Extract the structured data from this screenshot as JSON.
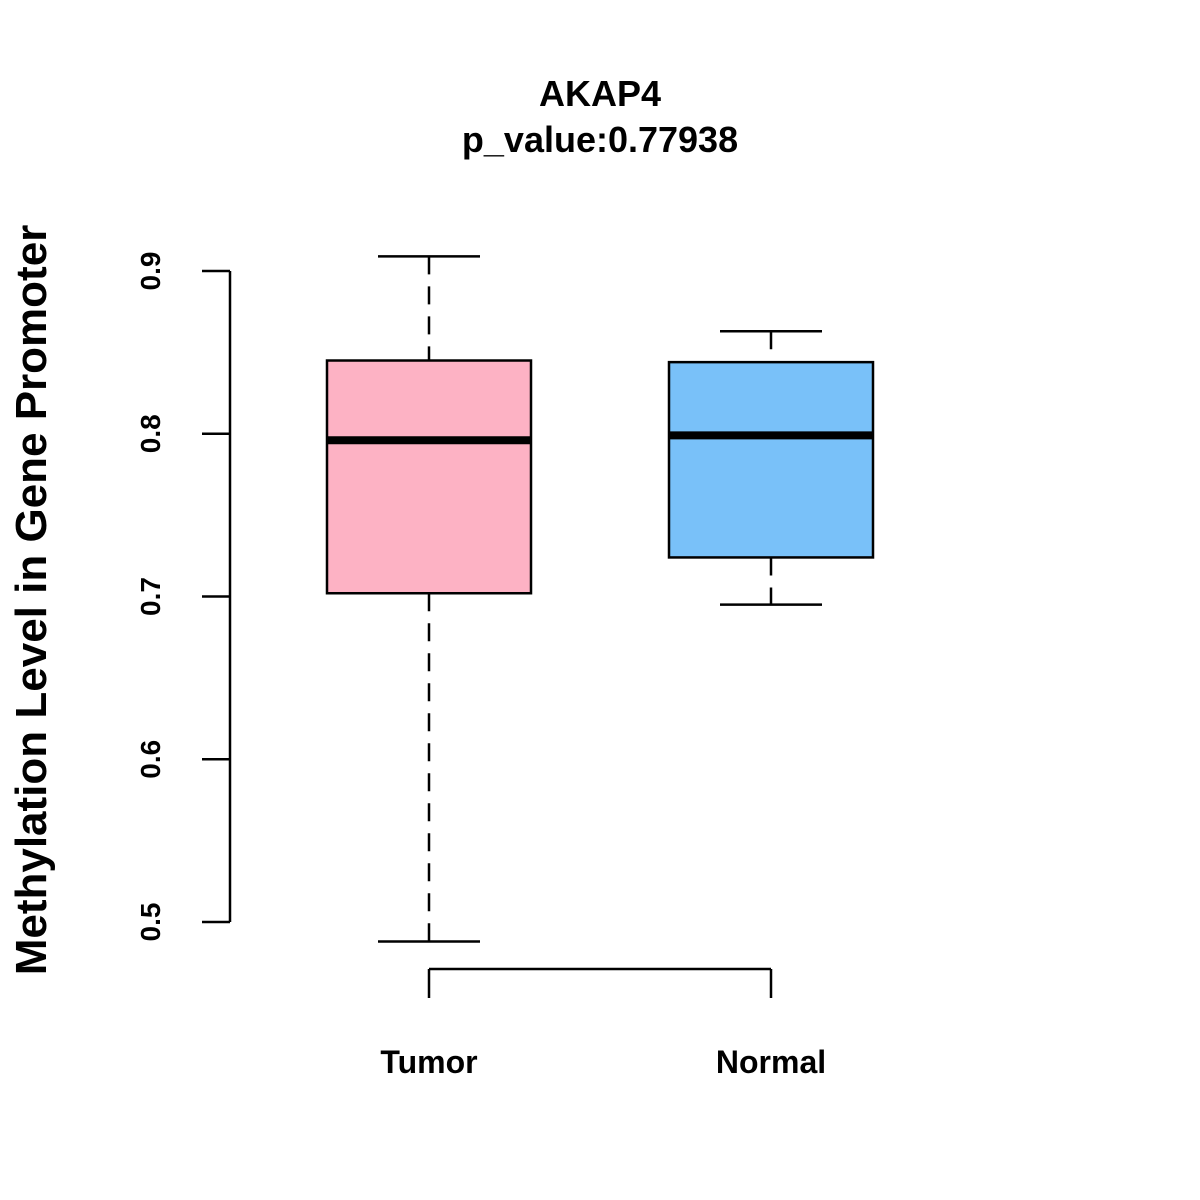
{
  "chart_data": {
    "type": "boxplot",
    "title": "AKAP4",
    "subtitle": "p_value:0.77938",
    "xlabel": "",
    "ylabel": "Methylation Level in Gene Promoter",
    "ylim": [
      0.5,
      0.9
    ],
    "yticks": [
      0.5,
      0.6,
      0.7,
      0.8,
      0.9
    ],
    "ytick_labels": [
      "0.5",
      "0.6",
      "0.7",
      "0.8",
      "0.9"
    ],
    "grid": false,
    "categories": [
      "Tumor",
      "Normal"
    ],
    "series": [
      {
        "name": "Tumor",
        "min": 0.488,
        "q1": 0.702,
        "median": 0.796,
        "q3": 0.845,
        "max": 0.909,
        "color": "#FDB2C4"
      },
      {
        "name": "Normal",
        "min": 0.695,
        "q1": 0.724,
        "median": 0.799,
        "q3": 0.844,
        "max": 0.863,
        "color": "#79C1F9"
      }
    ]
  }
}
